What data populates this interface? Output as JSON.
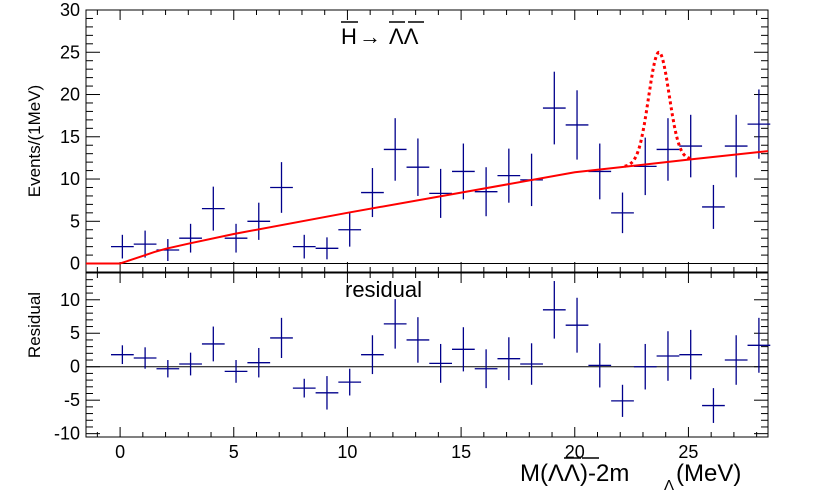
{
  "chart_data": [
    {
      "type": "scatter",
      "panel": "main",
      "title": "H→ΛΛ",
      "title_parts": {
        "h": "H",
        "arrow": "→",
        "lambdas": "ΛΛ"
      },
      "ylabel": "Events/(1MeV)",
      "xlim": [
        -1.5,
        28.5
      ],
      "ylim": [
        -1,
        30
      ],
      "yticks": [
        0,
        5,
        10,
        15,
        20,
        25,
        30
      ],
      "ytick_labels": [
        "0",
        "5",
        "10",
        "15",
        "20",
        "25",
        "30"
      ],
      "data_points": [
        {
          "x": 0.1,
          "y": 2.0,
          "err": 1.4
        },
        {
          "x": 1.1,
          "y": 2.3,
          "err": 1.6
        },
        {
          "x": 2.1,
          "y": 1.6,
          "err": 1.3
        },
        {
          "x": 3.1,
          "y": 3.0,
          "err": 1.7
        },
        {
          "x": 4.1,
          "y": 6.5,
          "err": 2.6
        },
        {
          "x": 5.1,
          "y": 3.0,
          "err": 1.7
        },
        {
          "x": 6.1,
          "y": 5.0,
          "err": 2.2
        },
        {
          "x": 7.1,
          "y": 9.0,
          "err": 3.0
        },
        {
          "x": 8.1,
          "y": 2.0,
          "err": 1.4
        },
        {
          "x": 9.1,
          "y": 1.8,
          "err": 1.3
        },
        {
          "x": 10.1,
          "y": 4.0,
          "err": 2.0
        },
        {
          "x": 11.1,
          "y": 8.4,
          "err": 2.9
        },
        {
          "x": 12.1,
          "y": 13.5,
          "err": 3.7
        },
        {
          "x": 13.1,
          "y": 11.4,
          "err": 3.4
        },
        {
          "x": 14.1,
          "y": 8.3,
          "err": 2.9
        },
        {
          "x": 15.1,
          "y": 10.9,
          "err": 3.3
        },
        {
          "x": 16.1,
          "y": 8.5,
          "err": 2.9
        },
        {
          "x": 17.1,
          "y": 10.4,
          "err": 3.2
        },
        {
          "x": 18.1,
          "y": 9.9,
          "err": 3.1
        },
        {
          "x": 19.1,
          "y": 18.4,
          "err": 4.3
        },
        {
          "x": 20.1,
          "y": 16.4,
          "err": 4.1
        },
        {
          "x": 21.1,
          "y": 10.9,
          "err": 3.3
        },
        {
          "x": 22.1,
          "y": 6.0,
          "err": 2.4
        },
        {
          "x": 23.1,
          "y": 11.5,
          "err": 3.4
        },
        {
          "x": 24.1,
          "y": 13.5,
          "err": 3.7
        },
        {
          "x": 25.1,
          "y": 13.9,
          "err": 3.7
        },
        {
          "x": 26.1,
          "y": 6.7,
          "err": 2.6
        },
        {
          "x": 27.1,
          "y": 13.9,
          "err": 3.7
        },
        {
          "x": 28.1,
          "y": 16.5,
          "err": 4.1
        }
      ],
      "bin_half_width": 0.5,
      "fit_curve": {
        "color": "#ff0000",
        "style": "solid",
        "threshold": 0.0,
        "points": [
          [
            -1.5,
            0
          ],
          [
            0,
            0
          ],
          [
            0.5,
            0.45
          ],
          [
            1,
            0.9
          ],
          [
            1.5,
            1.35
          ],
          [
            2,
            1.75
          ],
          [
            3,
            2.35
          ],
          [
            5,
            3.5
          ],
          [
            10,
            6.0
          ],
          [
            15,
            8.4
          ],
          [
            20,
            10.8
          ],
          [
            25,
            12.3
          ],
          [
            28.5,
            13.3
          ]
        ]
      },
      "signal_curve": {
        "color": "#ff0000",
        "style": "dotted",
        "x_range": [
          22.2,
          25.2
        ],
        "peak_x": 23.7,
        "peak_y": 25.0,
        "sigma": 0.45
      },
      "zero_line": true,
      "marker_color": "#00008b"
    },
    {
      "type": "scatter",
      "panel": "residual",
      "annotation": "residual",
      "ylabel": "Residual",
      "xlabel_main": "M(ΛΛ)-2m",
      "xlabel_subscript": "Λ",
      "xlabel_units": "(MeV)",
      "xlim": [
        -1.5,
        28.5
      ],
      "ylim": [
        -10.5,
        14
      ],
      "yticks": [
        -10,
        -5,
        0,
        5,
        10
      ],
      "ytick_labels": [
        "-10",
        "-5",
        "0",
        "5",
        "10"
      ],
      "xticks": [
        0,
        5,
        10,
        15,
        20,
        25
      ],
      "xtick_labels": [
        "0",
        "5",
        "10",
        "15",
        "20",
        "25"
      ],
      "data_points": [
        {
          "x": 0.1,
          "y": 1.8,
          "err": 1.4
        },
        {
          "x": 1.1,
          "y": 1.3,
          "err": 1.6
        },
        {
          "x": 2.1,
          "y": -0.3,
          "err": 1.3
        },
        {
          "x": 3.1,
          "y": 0.4,
          "err": 1.7
        },
        {
          "x": 4.1,
          "y": 3.4,
          "err": 2.6
        },
        {
          "x": 5.1,
          "y": -0.7,
          "err": 1.7
        },
        {
          "x": 6.1,
          "y": 0.6,
          "err": 2.2
        },
        {
          "x": 7.1,
          "y": 4.3,
          "err": 3.0
        },
        {
          "x": 8.1,
          "y": -3.2,
          "err": 1.4
        },
        {
          "x": 9.1,
          "y": -3.9,
          "err": 2.5
        },
        {
          "x": 10.1,
          "y": -2.3,
          "err": 2.0
        },
        {
          "x": 11.1,
          "y": 1.8,
          "err": 2.9
        },
        {
          "x": 12.1,
          "y": 6.4,
          "err": 3.7
        },
        {
          "x": 13.1,
          "y": 4.0,
          "err": 3.4
        },
        {
          "x": 14.1,
          "y": 0.5,
          "err": 2.9
        },
        {
          "x": 15.1,
          "y": 2.6,
          "err": 3.3
        },
        {
          "x": 16.1,
          "y": -0.3,
          "err": 2.9
        },
        {
          "x": 17.1,
          "y": 1.2,
          "err": 3.2
        },
        {
          "x": 18.1,
          "y": 0.4,
          "err": 3.1
        },
        {
          "x": 19.1,
          "y": 8.5,
          "err": 4.3
        },
        {
          "x": 20.1,
          "y": 6.2,
          "err": 4.1
        },
        {
          "x": 21.1,
          "y": 0.2,
          "err": 3.3
        },
        {
          "x": 22.1,
          "y": -5.1,
          "err": 2.4
        },
        {
          "x": 23.1,
          "y": 0.0,
          "err": 3.4
        },
        {
          "x": 24.1,
          "y": 1.6,
          "err": 3.7
        },
        {
          "x": 25.1,
          "y": 1.8,
          "err": 3.7
        },
        {
          "x": 26.1,
          "y": -5.8,
          "err": 2.6
        },
        {
          "x": 27.1,
          "y": 1.0,
          "err": 3.7
        },
        {
          "x": 28.1,
          "y": 3.2,
          "err": 4.1
        }
      ],
      "bin_half_width": 0.5,
      "zero_line": true,
      "marker_color": "#00008b"
    }
  ]
}
